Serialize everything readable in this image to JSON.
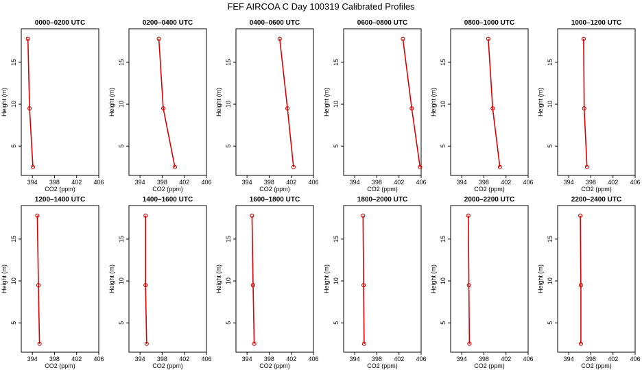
{
  "figure_title": "FEF AIRCOA C  Day 100319  Calibrated Profiles",
  "styles": {
    "line_color": "#dd0000",
    "marker_color": "#cc0000"
  },
  "chart_data": [
    {
      "type": "line",
      "title": "0000–0200 UTC",
      "xlabel": "CO2 (ppm)",
      "ylabel": "Height (m)",
      "xlim": [
        392,
        406
      ],
      "ylim": [
        1.5,
        19
      ],
      "xticks": [
        394,
        398,
        402,
        406
      ],
      "yticks": [
        5,
        10,
        15
      ],
      "x": [
        393.2,
        393.5,
        394.1
      ],
      "y": [
        17.8,
        9.5,
        2.5
      ]
    },
    {
      "type": "line",
      "title": "0200–0400 UTC",
      "xlabel": "CO2 (ppm)",
      "ylabel": "Height (m)",
      "xlim": [
        392,
        406
      ],
      "ylim": [
        1.5,
        19
      ],
      "xticks": [
        394,
        398,
        402,
        406
      ],
      "yticks": [
        5,
        10,
        15
      ],
      "x": [
        397.4,
        398.2,
        400.3
      ],
      "y": [
        17.8,
        9.5,
        2.5
      ]
    },
    {
      "type": "line",
      "title": "0400–0600 UTC",
      "xlabel": "CO2 (ppm)",
      "ylabel": "Height (m)",
      "xlim": [
        392,
        406
      ],
      "ylim": [
        1.5,
        19
      ],
      "xticks": [
        394,
        398,
        402,
        406
      ],
      "yticks": [
        5,
        10,
        15
      ],
      "x": [
        399.9,
        401.3,
        402.4
      ],
      "y": [
        17.8,
        9.5,
        2.5
      ]
    },
    {
      "type": "line",
      "title": "0600–0800 UTC",
      "xlabel": "CO2 (ppm)",
      "ylabel": "Height (m)",
      "xlim": [
        392,
        406
      ],
      "ylim": [
        1.5,
        19
      ],
      "xticks": [
        394,
        398,
        402,
        406
      ],
      "yticks": [
        5,
        10,
        15
      ],
      "x": [
        402.7,
        404.3,
        405.8
      ],
      "y": [
        17.8,
        9.5,
        2.5
      ]
    },
    {
      "type": "line",
      "title": "0800–1000 UTC",
      "xlabel": "CO2 (ppm)",
      "ylabel": "Height (m)",
      "xlim": [
        392,
        406
      ],
      "ylim": [
        1.5,
        19
      ],
      "xticks": [
        394,
        398,
        402,
        406
      ],
      "yticks": [
        5,
        10,
        15
      ],
      "x": [
        398.8,
        399.6,
        400.9
      ],
      "y": [
        17.8,
        9.5,
        2.5
      ]
    },
    {
      "type": "line",
      "title": "1000–1200 UTC",
      "xlabel": "CO2 (ppm)",
      "ylabel": "Height (m)",
      "xlim": [
        392,
        406
      ],
      "ylim": [
        1.5,
        19
      ],
      "xticks": [
        394,
        398,
        402,
        406
      ],
      "yticks": [
        5,
        10,
        15
      ],
      "x": [
        396.7,
        396.8,
        397.3
      ],
      "y": [
        17.8,
        9.5,
        2.5
      ]
    },
    {
      "type": "line",
      "title": "1200–1400 UTC",
      "xlabel": "CO2 (ppm)",
      "ylabel": "Height (m)",
      "xlim": [
        392,
        406
      ],
      "ylim": [
        1.5,
        19
      ],
      "xticks": [
        394,
        398,
        402,
        406
      ],
      "yticks": [
        5,
        10,
        15
      ],
      "x": [
        394.9,
        395.1,
        395.3
      ],
      "y": [
        17.8,
        9.5,
        2.5
      ]
    },
    {
      "type": "line",
      "title": "1400–1600 UTC",
      "xlabel": "CO2 (ppm)",
      "ylabel": "Height (m)",
      "xlim": [
        392,
        406
      ],
      "ylim": [
        1.5,
        19
      ],
      "xticks": [
        394,
        398,
        402,
        406
      ],
      "yticks": [
        5,
        10,
        15
      ],
      "x": [
        395.0,
        395.0,
        395.2
      ],
      "y": [
        17.8,
        9.5,
        2.5
      ]
    },
    {
      "type": "line",
      "title": "1600–1800 UTC",
      "xlabel": "CO2 (ppm)",
      "ylabel": "Height (m)",
      "xlim": [
        392,
        406
      ],
      "ylim": [
        1.5,
        19
      ],
      "xticks": [
        394,
        398,
        402,
        406
      ],
      "yticks": [
        5,
        10,
        15
      ],
      "x": [
        394.9,
        395.1,
        395.3
      ],
      "y": [
        17.8,
        9.5,
        2.5
      ]
    },
    {
      "type": "line",
      "title": "1800–2000 UTC",
      "xlabel": "CO2 (ppm)",
      "ylabel": "Height (m)",
      "xlim": [
        392,
        406
      ],
      "ylim": [
        1.5,
        19
      ],
      "xticks": [
        394,
        398,
        402,
        406
      ],
      "yticks": [
        5,
        10,
        15
      ],
      "x": [
        395.5,
        395.6,
        395.7
      ],
      "y": [
        17.8,
        9.5,
        2.5
      ]
    },
    {
      "type": "line",
      "title": "2000–2200 UTC",
      "xlabel": "CO2 (ppm)",
      "ylabel": "Height (m)",
      "xlim": [
        392,
        406
      ],
      "ylim": [
        1.5,
        19
      ],
      "xticks": [
        394,
        398,
        402,
        406
      ],
      "yticks": [
        5,
        10,
        15
      ],
      "x": [
        395.2,
        395.3,
        395.4
      ],
      "y": [
        17.8,
        9.5,
        2.5
      ]
    },
    {
      "type": "line",
      "title": "2200–2400 UTC",
      "xlabel": "CO2 (ppm)",
      "ylabel": "Height (m)",
      "xlim": [
        392,
        406
      ],
      "ylim": [
        1.5,
        19
      ],
      "xticks": [
        394,
        398,
        402,
        406
      ],
      "yticks": [
        5,
        10,
        15
      ],
      "x": [
        396.1,
        396.2,
        396.2
      ],
      "y": [
        17.8,
        9.5,
        2.5
      ]
    }
  ]
}
